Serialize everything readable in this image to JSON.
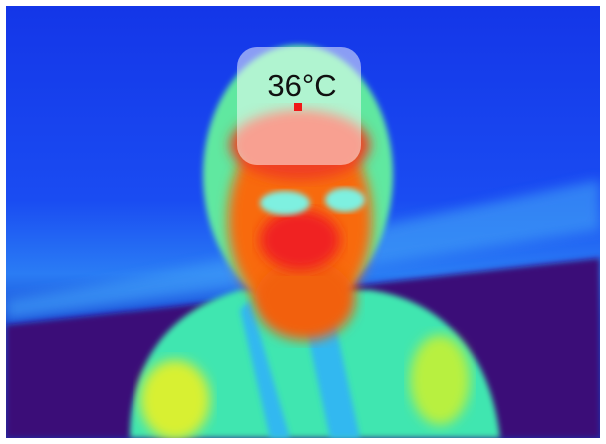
{
  "overlay": {
    "temperature": "36°C"
  }
}
